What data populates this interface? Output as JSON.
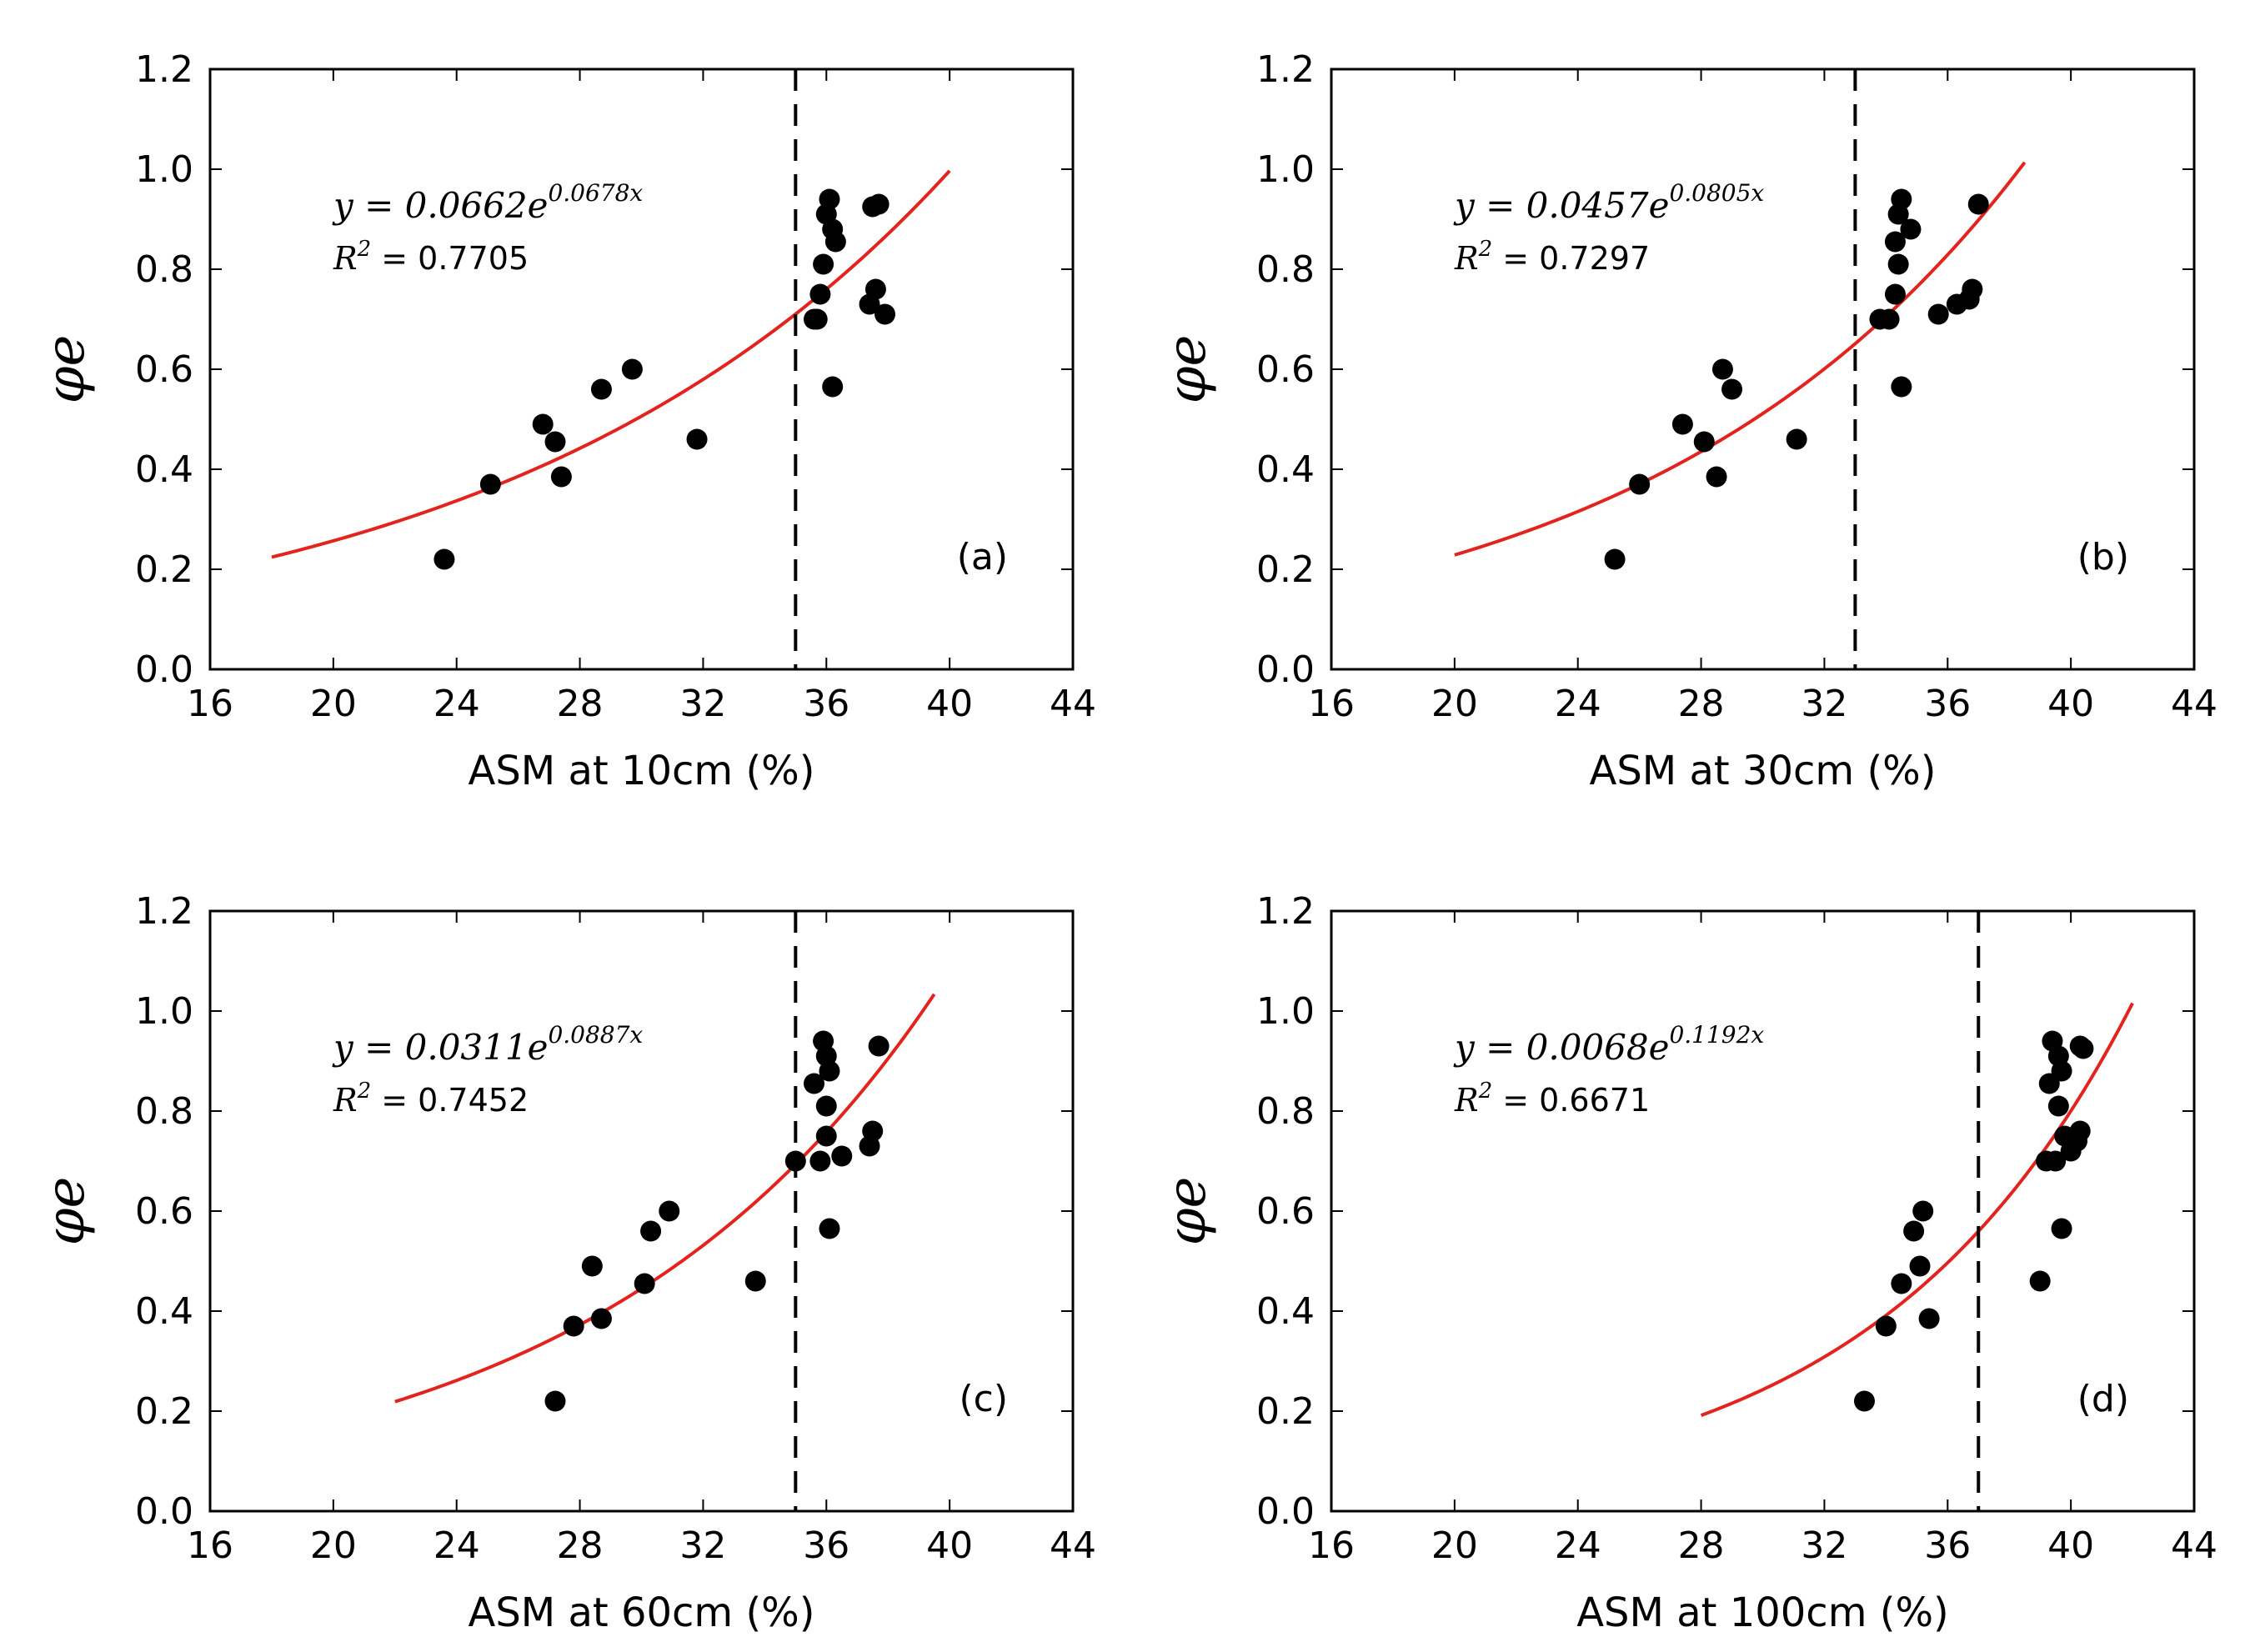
{
  "chart_data": [
    {
      "type": "scatter",
      "panel": "(a)",
      "xlabel": "ASM at 10cm (%)",
      "ylabel": "φe",
      "xlim": [
        16,
        44
      ],
      "ylim": [
        0,
        1.2
      ],
      "xticks": [
        "16",
        "20",
        "24",
        "28",
        "32",
        "36",
        "40",
        "44"
      ],
      "yticks": [
        "0.0",
        "0.2",
        "0.4",
        "0.6",
        "0.8",
        "1.0",
        "1.2"
      ],
      "equation": {
        "prefix": "y = 0.0662e",
        "exponent": "0.0678x"
      },
      "r2": {
        "label": "R",
        "sup": "2",
        "value": " = 0.7705"
      },
      "fit": {
        "a": 0.0662,
        "b": 0.0678,
        "x_range": [
          18,
          40
        ]
      },
      "threshold_x": 35,
      "points": [
        [
          23.6,
          0.22
        ],
        [
          25.1,
          0.37
        ],
        [
          26.8,
          0.49
        ],
        [
          27.2,
          0.455
        ],
        [
          27.4,
          0.385
        ],
        [
          28.7,
          0.56
        ],
        [
          29.7,
          0.6
        ],
        [
          31.8,
          0.46
        ],
        [
          35.6,
          0.7
        ],
        [
          35.7,
          0.7
        ],
        [
          35.8,
          0.75
        ],
        [
          35.9,
          0.81
        ],
        [
          36.0,
          0.91
        ],
        [
          36.1,
          0.94
        ],
        [
          36.2,
          0.565
        ],
        [
          36.2,
          0.88
        ],
        [
          36.3,
          0.855
        ],
        [
          37.4,
          0.73
        ],
        [
          37.5,
          0.925
        ],
        [
          37.6,
          0.76
        ],
        [
          37.7,
          0.93
        ],
        [
          37.9,
          0.71
        ]
      ]
    },
    {
      "type": "scatter",
      "panel": "(b)",
      "xlabel": "ASM at 30cm (%)",
      "ylabel": "φe",
      "xlim": [
        16,
        44
      ],
      "ylim": [
        0,
        1.2
      ],
      "xticks": [
        "16",
        "20",
        "24",
        "28",
        "32",
        "36",
        "40",
        "44"
      ],
      "yticks": [
        "0.0",
        "0.2",
        "0.4",
        "0.6",
        "0.8",
        "1.0",
        "1.2"
      ],
      "equation": {
        "prefix": "y = 0.0457e",
        "exponent": "0.0805x"
      },
      "r2": {
        "label": "R",
        "sup": "2",
        "value": " = 0.7297"
      },
      "fit": {
        "a": 0.0457,
        "b": 0.0805,
        "x_range": [
          20,
          38.5
        ]
      },
      "threshold_x": 33,
      "points": [
        [
          25.2,
          0.22
        ],
        [
          26.0,
          0.37
        ],
        [
          27.4,
          0.49
        ],
        [
          28.1,
          0.455
        ],
        [
          28.5,
          0.385
        ],
        [
          28.7,
          0.6
        ],
        [
          29.0,
          0.56
        ],
        [
          31.1,
          0.46
        ],
        [
          33.8,
          0.7
        ],
        [
          34.1,
          0.7
        ],
        [
          34.3,
          0.75
        ],
        [
          34.3,
          0.855
        ],
        [
          34.4,
          0.81
        ],
        [
          34.4,
          0.91
        ],
        [
          34.5,
          0.94
        ],
        [
          34.5,
          0.565
        ],
        [
          34.8,
          0.88
        ],
        [
          35.7,
          0.71
        ],
        [
          36.3,
          0.73
        ],
        [
          36.7,
          0.74
        ],
        [
          36.8,
          0.76
        ],
        [
          37.0,
          0.93
        ]
      ]
    },
    {
      "type": "scatter",
      "panel": "(c)",
      "xlabel": "ASM at 60cm (%)",
      "ylabel": "φe",
      "xlim": [
        16,
        44
      ],
      "ylim": [
        0,
        1.2
      ],
      "xticks": [
        "16",
        "20",
        "24",
        "28",
        "32",
        "36",
        "40",
        "44"
      ],
      "yticks": [
        "0.0",
        "0.2",
        "0.4",
        "0.6",
        "0.8",
        "1.0",
        "1.2"
      ],
      "equation": {
        "prefix": "y = 0.0311e",
        "exponent": "0.0887x"
      },
      "r2": {
        "label": "R",
        "sup": "2",
        "value": " = 0.7452"
      },
      "fit": {
        "a": 0.0311,
        "b": 0.0887,
        "x_range": [
          22,
          39.5
        ]
      },
      "threshold_x": 35,
      "points": [
        [
          27.2,
          0.22
        ],
        [
          27.8,
          0.37
        ],
        [
          28.4,
          0.49
        ],
        [
          28.7,
          0.385
        ],
        [
          30.1,
          0.455
        ],
        [
          30.3,
          0.56
        ],
        [
          30.9,
          0.6
        ],
        [
          33.7,
          0.46
        ],
        [
          35.0,
          0.7
        ],
        [
          35.6,
          0.855
        ],
        [
          35.8,
          0.7
        ],
        [
          35.9,
          0.94
        ],
        [
          36.0,
          0.81
        ],
        [
          36.0,
          0.75
        ],
        [
          36.0,
          0.91
        ],
        [
          36.1,
          0.88
        ],
        [
          36.1,
          0.565
        ],
        [
          36.5,
          0.71
        ],
        [
          37.4,
          0.73
        ],
        [
          37.5,
          0.76
        ],
        [
          37.7,
          0.93
        ]
      ]
    },
    {
      "type": "scatter",
      "panel": "(d)",
      "xlabel": "ASM at 100cm (%)",
      "ylabel": "φe",
      "xlim": [
        16,
        44
      ],
      "ylim": [
        0,
        1.2
      ],
      "xticks": [
        "16",
        "20",
        "24",
        "28",
        "32",
        "36",
        "40",
        "44"
      ],
      "yticks": [
        "0.0",
        "0.2",
        "0.4",
        "0.6",
        "0.8",
        "1.0",
        "1.2"
      ],
      "equation": {
        "prefix": "y = 0.0068e",
        "exponent": "0.1192x"
      },
      "r2": {
        "label": "R",
        "sup": "2",
        "value": " = 0.6671"
      },
      "fit": {
        "a": 0.0068,
        "b": 0.1192,
        "x_range": [
          28,
          42
        ]
      },
      "threshold_x": 37,
      "points": [
        [
          33.3,
          0.22
        ],
        [
          34.0,
          0.37
        ],
        [
          34.5,
          0.455
        ],
        [
          34.9,
          0.56
        ],
        [
          35.1,
          0.49
        ],
        [
          35.2,
          0.6
        ],
        [
          35.4,
          0.385
        ],
        [
          39.0,
          0.46
        ],
        [
          39.2,
          0.7
        ],
        [
          39.3,
          0.855
        ],
        [
          39.4,
          0.94
        ],
        [
          39.5,
          0.7
        ],
        [
          39.6,
          0.81
        ],
        [
          39.6,
          0.91
        ],
        [
          39.7,
          0.565
        ],
        [
          39.7,
          0.88
        ],
        [
          39.8,
          0.75
        ],
        [
          40.0,
          0.72
        ],
        [
          40.2,
          0.74
        ],
        [
          40.3,
          0.76
        ],
        [
          40.3,
          0.93
        ],
        [
          40.4,
          0.925
        ]
      ]
    }
  ]
}
